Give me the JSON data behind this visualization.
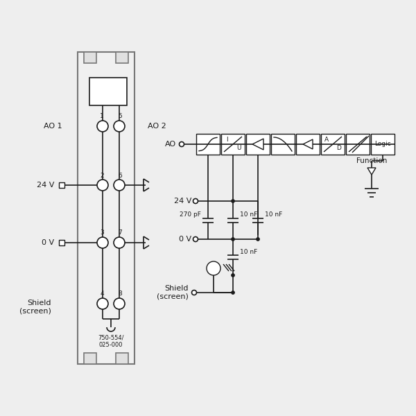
{
  "bg_color": "#eeeeee",
  "line_color": "#1a1a1a",
  "labels": {
    "AO1": "AO 1",
    "AO2": "AO 2",
    "AO": "AO",
    "24V_left": "24 V",
    "0V_left": "0 V",
    "shield_left": "Shield\n(screen)",
    "24V_right": "24 V",
    "0V_right": "0 V",
    "shield_right": "Shield\n(screen)",
    "cap1": "270 pF",
    "cap2": "10 nF",
    "cap3": "10 nF",
    "cap4": "10 nF",
    "logic": "Logic",
    "function": "Function",
    "part_num": "750-554/\n025-000"
  }
}
